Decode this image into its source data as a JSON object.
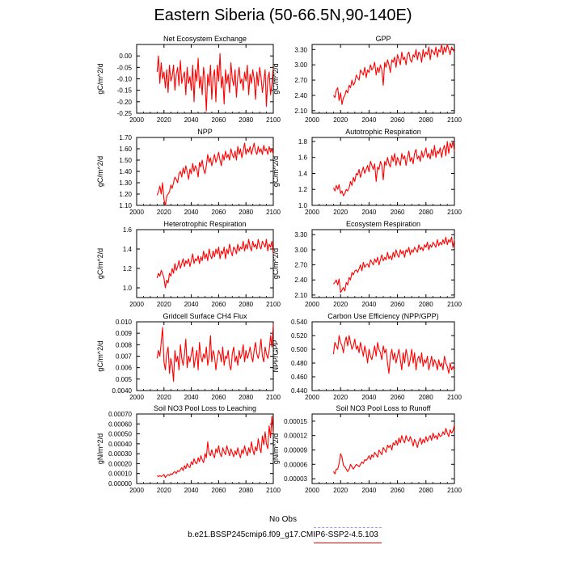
{
  "page": {
    "title": "Eastern Siberia (50-66.5N,90-140E)",
    "colors": {
      "series": "#ff0000",
      "obs": "#9999ff",
      "axis": "#000000",
      "background": "#ffffff"
    }
  },
  "legend": {
    "obs_label": "No Obs",
    "model_label": "b.e21.BSSP245cmip6.f09_g17.CMIP6-SSP2-4.5.103"
  },
  "chart_data": [
    {
      "type": "line",
      "title": "Net Ecosystem Exchange",
      "ylabel": "gC/m^2/d",
      "xlim": [
        2000,
        2100
      ],
      "ylim": [
        -0.25,
        0.05
      ],
      "xticks": [
        "2000",
        "2020",
        "2040",
        "2060",
        "2080",
        "2100"
      ],
      "yticks": [
        "0.00",
        "-0.05",
        "-0.10",
        "-0.15",
        "-0.20",
        "-0.25"
      ],
      "ytick_values": [
        0,
        -0.05,
        -0.1,
        -0.15,
        -0.2,
        -0.25
      ],
      "x_start": 2015,
      "values": [
        -0.07,
        0.0,
        -0.12,
        -0.03,
        -0.1,
        -0.07,
        -0.14,
        -0.06,
        -0.16,
        -0.04,
        -0.11,
        -0.09,
        -0.04,
        -0.15,
        -0.08,
        -0.05,
        -0.13,
        -0.02,
        -0.12,
        -0.09,
        -0.07,
        -0.17,
        -0.05,
        -0.12,
        -0.09,
        -0.15,
        -0.04,
        -0.2,
        -0.06,
        -0.11,
        -0.01,
        -0.14,
        -0.09,
        -0.17,
        -0.05,
        -0.1,
        -0.24,
        -0.08,
        -0.13,
        -0.04,
        -0.19,
        -0.09,
        -0.06,
        -0.2,
        -0.04,
        -0.11,
        0.01,
        -0.14,
        -0.09,
        -0.21,
        -0.06,
        -0.12,
        -0.08,
        -0.16,
        -0.03,
        -0.1,
        -0.13,
        -0.06,
        -0.18,
        -0.09,
        -0.05,
        -0.12,
        -0.1,
        -0.15,
        -0.07,
        -0.11,
        -0.04,
        -0.17,
        -0.08,
        -0.12,
        -0.06,
        -0.1,
        -0.19,
        -0.07,
        -0.13,
        -0.05,
        -0.09,
        -0.16,
        -0.11,
        -0.06,
        -0.22,
        -0.1,
        -0.07,
        -0.17,
        -0.12,
        -0.05
      ]
    },
    {
      "type": "line",
      "title": "GPP",
      "ylabel": "gC/m^2/d",
      "xlim": [
        2000,
        2100
      ],
      "ylim": [
        2.05,
        3.4
      ],
      "xticks": [
        "2000",
        "2020",
        "2040",
        "2060",
        "2080",
        "2100"
      ],
      "yticks": [
        "3.30",
        "3.00",
        "2.70",
        "2.40",
        "2.10"
      ],
      "ytick_values": [
        3.3,
        3.0,
        2.7,
        2.4,
        2.1
      ],
      "x_start": 2015,
      "values": [
        2.4,
        2.36,
        2.5,
        2.55,
        2.3,
        2.45,
        2.22,
        2.35,
        2.4,
        2.5,
        2.45,
        2.6,
        2.55,
        2.7,
        2.6,
        2.65,
        2.8,
        2.75,
        2.7,
        2.9,
        2.85,
        2.8,
        2.95,
        2.75,
        2.9,
        2.85,
        3.0,
        2.9,
        2.95,
        3.05,
        2.8,
        2.95,
        2.85,
        3.0,
        2.9,
        2.6,
        3.05,
        2.95,
        3.1,
        3.0,
        2.85,
        3.1,
        3.05,
        3.15,
        2.95,
        3.2,
        3.1,
        3.0,
        3.25,
        3.1,
        3.15,
        3.0,
        3.2,
        3.25,
        3.1,
        3.05,
        3.2,
        3.15,
        3.3,
        3.1,
        3.25,
        3.2,
        3.05,
        3.3,
        3.15,
        3.25,
        3.2,
        3.35,
        3.1,
        3.3,
        3.25,
        3.2,
        3.35,
        3.15,
        3.3,
        3.25,
        3.4,
        3.2,
        3.35,
        3.25,
        3.4,
        3.3,
        3.2,
        3.35,
        3.3,
        3.25
      ]
    },
    {
      "type": "line",
      "title": "NPP",
      "ylabel": "gC/m^2/d",
      "xlim": [
        2000,
        2100
      ],
      "ylim": [
        1.1,
        1.7
      ],
      "xticks": [
        "2000",
        "2020",
        "2040",
        "2060",
        "2080",
        "2100"
      ],
      "yticks": [
        "1.70",
        "1.60",
        "1.50",
        "1.40",
        "1.30",
        "1.20",
        "1.10"
      ],
      "ytick_values": [
        1.7,
        1.6,
        1.5,
        1.4,
        1.3,
        1.2,
        1.1
      ],
      "x_start": 2015,
      "values": [
        1.19,
        1.22,
        1.27,
        1.2,
        1.3,
        1.15,
        1.1,
        1.18,
        1.2,
        1.22,
        1.28,
        1.25,
        1.3,
        1.35,
        1.33,
        1.3,
        1.38,
        1.4,
        1.35,
        1.43,
        1.38,
        1.45,
        1.4,
        1.33,
        1.42,
        1.38,
        1.47,
        1.4,
        1.45,
        1.42,
        1.35,
        1.48,
        1.44,
        1.5,
        1.42,
        1.38,
        1.45,
        1.55,
        1.48,
        1.52,
        1.45,
        1.5,
        1.55,
        1.48,
        1.52,
        1.57,
        1.5,
        1.45,
        1.55,
        1.5,
        1.58,
        1.52,
        1.55,
        1.5,
        1.6,
        1.55,
        1.52,
        1.58,
        1.5,
        1.62,
        1.55,
        1.6,
        1.52,
        1.58,
        1.65,
        1.55,
        1.6,
        1.57,
        1.62,
        1.55,
        1.6,
        1.65,
        1.58,
        1.55,
        1.62,
        1.57,
        1.6,
        1.55,
        1.63,
        1.58,
        1.6,
        1.55,
        1.62,
        1.57,
        1.6,
        1.55
      ]
    },
    {
      "type": "line",
      "title": "Autotrophic Respiration",
      "ylabel": "gC/m^2/d",
      "xlim": [
        2000,
        2100
      ],
      "ylim": [
        1.0,
        1.85
      ],
      "xticks": [
        "2000",
        "2020",
        "2040",
        "2060",
        "2080",
        "2100"
      ],
      "yticks": [
        "1.8",
        "1.6",
        "1.4",
        "1.2",
        "1.0"
      ],
      "ytick_values": [
        1.8,
        1.6,
        1.4,
        1.2,
        1.0
      ],
      "x_start": 2015,
      "values": [
        1.22,
        1.18,
        1.25,
        1.2,
        1.26,
        1.15,
        1.18,
        1.12,
        1.15,
        1.2,
        1.18,
        1.22,
        1.3,
        1.25,
        1.35,
        1.3,
        1.4,
        1.38,
        1.45,
        1.35,
        1.42,
        1.48,
        1.4,
        1.45,
        1.5,
        1.42,
        1.55,
        1.5,
        1.45,
        1.52,
        1.3,
        1.48,
        1.45,
        1.55,
        1.5,
        1.32,
        1.55,
        1.5,
        1.6,
        1.52,
        1.48,
        1.62,
        1.55,
        1.65,
        1.5,
        1.6,
        1.55,
        1.5,
        1.65,
        1.58,
        1.62,
        1.5,
        1.6,
        1.68,
        1.55,
        1.6,
        1.52,
        1.65,
        1.7,
        1.58,
        1.62,
        1.55,
        1.68,
        1.6,
        1.65,
        1.72,
        1.6,
        1.65,
        1.58,
        1.7,
        1.62,
        1.75,
        1.6,
        1.68,
        1.65,
        1.72,
        1.6,
        1.7,
        1.75,
        1.62,
        1.8,
        1.65,
        1.78,
        1.72,
        1.8,
        1.68
      ]
    },
    {
      "type": "line",
      "title": "Heterotrophic Respiration",
      "ylabel": "gC/m^2/d",
      "xlim": [
        2000,
        2100
      ],
      "ylim": [
        0.9,
        1.6
      ],
      "xticks": [
        "2000",
        "2020",
        "2040",
        "2060",
        "2080",
        "2100"
      ],
      "yticks": [
        "1.6",
        "1.4",
        "1.2",
        "1.0"
      ],
      "ytick_values": [
        1.6,
        1.4,
        1.2,
        1.0
      ],
      "x_start": 2015,
      "values": [
        1.1,
        1.15,
        1.12,
        1.18,
        1.15,
        1.1,
        1.0,
        1.08,
        1.05,
        1.15,
        1.12,
        1.2,
        1.15,
        1.25,
        1.18,
        1.22,
        1.28,
        1.2,
        1.25,
        1.3,
        1.22,
        1.28,
        1.25,
        1.3,
        1.22,
        1.28,
        1.35,
        1.25,
        1.3,
        1.28,
        1.33,
        1.25,
        1.32,
        1.28,
        1.38,
        1.3,
        1.35,
        1.28,
        1.4,
        1.33,
        1.3,
        1.38,
        1.32,
        1.4,
        1.35,
        1.42,
        1.3,
        1.38,
        1.35,
        1.42,
        1.3,
        1.4,
        1.35,
        1.45,
        1.38,
        1.33,
        1.42,
        1.4,
        1.35,
        1.45,
        1.38,
        1.42,
        1.4,
        1.48,
        1.38,
        1.45,
        1.4,
        1.5,
        1.42,
        1.38,
        1.48,
        1.42,
        1.45,
        1.4,
        1.5,
        1.43,
        1.4,
        1.48,
        1.45,
        1.42,
        1.5,
        1.38,
        1.45,
        1.42,
        1.48,
        1.35
      ]
    },
    {
      "type": "line",
      "title": "Ecosystem Respiration",
      "ylabel": "gC/m^2/d",
      "xlim": [
        2000,
        2100
      ],
      "ylim": [
        2.05,
        3.4
      ],
      "xticks": [
        "2000",
        "2020",
        "2040",
        "2060",
        "2080",
        "2100"
      ],
      "yticks": [
        "3.30",
        "3.00",
        "2.70",
        "2.40",
        "2.10"
      ],
      "ytick_values": [
        3.3,
        3.0,
        2.7,
        2.4,
        2.1
      ],
      "x_start": 2015,
      "values": [
        2.32,
        2.35,
        2.4,
        2.3,
        2.42,
        2.15,
        2.2,
        2.25,
        2.18,
        2.35,
        2.3,
        2.45,
        2.4,
        2.55,
        2.5,
        2.58,
        2.6,
        2.55,
        2.62,
        2.7,
        2.58,
        2.75,
        2.65,
        2.7,
        2.72,
        2.65,
        2.8,
        2.75,
        2.7,
        2.82,
        2.75,
        2.85,
        2.7,
        2.8,
        2.9,
        2.78,
        2.85,
        2.8,
        2.95,
        2.82,
        2.88,
        2.8,
        2.95,
        2.85,
        3.0,
        2.9,
        2.85,
        3.0,
        2.92,
        2.98,
        2.85,
        3.0,
        2.95,
        3.05,
        2.9,
        3.0,
        2.95,
        3.05,
        3.0,
        2.95,
        3.1,
        3.0,
        3.05,
        2.98,
        3.1,
        3.05,
        3.15,
        3.0,
        3.1,
        3.05,
        3.15,
        3.1,
        3.05,
        3.2,
        3.08,
        3.15,
        3.1,
        3.2,
        3.12,
        3.25,
        3.1,
        3.2,
        3.15,
        3.25,
        3.05,
        3.2
      ]
    },
    {
      "type": "line",
      "title": "Gridcell Surface CH4 Flux",
      "ylabel": "gC/m^2/d",
      "xlim": [
        2000,
        2100
      ],
      "ylim": [
        0.004,
        0.01
      ],
      "xticks": [
        "2000",
        "2020",
        "2040",
        "2060",
        "2080",
        "2100"
      ],
      "yticks": [
        "0.010",
        "0.009",
        "0.008",
        "0.007",
        "0.006",
        "0.005",
        "0.0040"
      ],
      "ytick_values": [
        0.01,
        0.009,
        0.008,
        0.007,
        0.006,
        0.005,
        0.004
      ],
      "x_start": 2015,
      "values": [
        0.0068,
        0.0075,
        0.007,
        0.0082,
        0.0095,
        0.0065,
        0.0058,
        0.0072,
        0.0078,
        0.0055,
        0.0068,
        0.0062,
        0.0048,
        0.0075,
        0.0065,
        0.007,
        0.0058,
        0.008,
        0.0068,
        0.0062,
        0.0072,
        0.0085,
        0.006,
        0.007,
        0.0065,
        0.0072,
        0.0078,
        0.006,
        0.0068,
        0.0075,
        0.0058,
        0.0082,
        0.007,
        0.0065,
        0.0072,
        0.0068,
        0.0078,
        0.0062,
        0.007,
        0.0088,
        0.0065,
        0.0075,
        0.007,
        0.0058,
        0.0068,
        0.0075,
        0.0072,
        0.0065,
        0.0078,
        0.0062,
        0.007,
        0.0068,
        0.0075,
        0.0062,
        0.0058,
        0.0072,
        0.0078,
        0.0065,
        0.007,
        0.0062,
        0.0075,
        0.0068,
        0.0072,
        0.008,
        0.0065,
        0.0075,
        0.0068,
        0.0072,
        0.0078,
        0.007,
        0.0065,
        0.0075,
        0.0082,
        0.0072,
        0.0068,
        0.0075,
        0.0085,
        0.007,
        0.0065,
        0.0078,
        0.0072,
        0.0068,
        0.0075,
        0.0088,
        0.0078,
        0.0098
      ]
    },
    {
      "type": "line",
      "title": "Carbon Use Efficiency (NPP/GPP)",
      "ylabel": "NPP/GPP",
      "xlim": [
        2000,
        2100
      ],
      "ylim": [
        0.44,
        0.54
      ],
      "xticks": [
        "2000",
        "2020",
        "2040",
        "2060",
        "2080",
        "2100"
      ],
      "yticks": [
        "0.540",
        "0.520",
        "0.500",
        "0.480",
        "0.460",
        "0.440"
      ],
      "ytick_values": [
        0.54,
        0.52,
        0.5,
        0.48,
        0.46,
        0.44
      ],
      "x_start": 2015,
      "values": [
        0.493,
        0.51,
        0.505,
        0.5,
        0.52,
        0.51,
        0.505,
        0.495,
        0.51,
        0.518,
        0.505,
        0.52,
        0.51,
        0.5,
        0.505,
        0.515,
        0.5,
        0.505,
        0.495,
        0.51,
        0.5,
        0.49,
        0.505,
        0.495,
        0.48,
        0.5,
        0.49,
        0.485,
        0.495,
        0.505,
        0.49,
        0.51,
        0.5,
        0.495,
        0.485,
        0.505,
        0.495,
        0.5,
        0.48,
        0.465,
        0.49,
        0.5,
        0.485,
        0.495,
        0.48,
        0.49,
        0.5,
        0.485,
        0.47,
        0.495,
        0.48,
        0.5,
        0.49,
        0.475,
        0.485,
        0.5,
        0.48,
        0.495,
        0.47,
        0.485,
        0.49,
        0.48,
        0.495,
        0.475,
        0.485,
        0.48,
        0.49,
        0.47,
        0.48,
        0.49,
        0.475,
        0.485,
        0.48,
        0.47,
        0.485,
        0.475,
        0.48,
        0.47,
        0.49,
        0.48,
        0.475,
        0.465,
        0.48,
        0.47,
        0.475,
        0.47
      ]
    },
    {
      "type": "line",
      "title": "Soil NO3 Pool Loss to Leaching",
      "ylabel": "gN/m^2/d",
      "xlim": [
        2000,
        2100
      ],
      "ylim": [
        0.0,
        0.0007
      ],
      "xticks": [
        "2000",
        "2020",
        "2040",
        "2060",
        "2080",
        "2100"
      ],
      "yticks": [
        "0.00070",
        "0.00060",
        "0.00050",
        "0.00040",
        "0.00030",
        "0.00020",
        "0.00010",
        "0.00000"
      ],
      "ytick_values": [
        0.0007,
        0.0006,
        0.0005,
        0.0004,
        0.0003,
        0.0002,
        0.0001,
        0.0
      ],
      "x_start": 2015,
      "values": [
        8e-05,
        7e-05,
        8e-05,
        7e-05,
        8e-05,
        9e-05,
        6e-05,
        8e-05,
        9e-05,
        8e-05,
        0.0001,
        9e-05,
        0.00011,
        0.00012,
        0.0001,
        0.00013,
        0.00012,
        0.00014,
        0.00016,
        0.00013,
        0.00018,
        0.00015,
        0.0002,
        0.00017,
        0.00016,
        0.00022,
        0.00019,
        0.00025,
        0.00021,
        0.0002,
        0.00026,
        0.00022,
        0.00028,
        0.00024,
        0.00021,
        0.0003,
        0.00026,
        0.00042,
        0.0003,
        0.00028,
        0.00034,
        0.00029,
        0.00026,
        0.00035,
        0.00031,
        0.00038,
        0.0003,
        0.00027,
        0.00036,
        0.00032,
        0.00029,
        0.00038,
        0.00033,
        0.00028,
        0.00035,
        0.00031,
        0.00027,
        0.00033,
        0.00029,
        0.00036,
        0.0003,
        0.00026,
        0.00034,
        0.0003,
        0.00038,
        0.00032,
        0.00028,
        0.00036,
        0.00031,
        0.00042,
        0.00034,
        0.00029,
        0.00037,
        0.00033,
        0.00045,
        0.00036,
        0.00031,
        0.00048,
        0.00039,
        0.00052,
        0.0004,
        0.00035,
        0.00058,
        0.00046,
        0.00068,
        0.0005
      ]
    },
    {
      "type": "line",
      "title": "Soil NO3 Pool Loss to Runoff",
      "ylabel": "gN/m^2/d",
      "xlim": [
        2000,
        2100
      ],
      "ylim": [
        2e-05,
        0.000165
      ],
      "xticks": [
        "2000",
        "2020",
        "2040",
        "2060",
        "2080",
        "2100"
      ],
      "yticks": [
        "0.00015",
        "0.00012",
        "0.00009",
        "0.00006",
        "0.00003"
      ],
      "ytick_values": [
        0.00015,
        0.00012,
        9e-05,
        6e-05,
        3e-05
      ],
      "x_start": 2015,
      "values": [
        4.5e-05,
        4e-05,
        5e-05,
        5e-05,
        6.2e-05,
        8.2e-05,
        7.5e-05,
        5.8e-05,
        5.5e-05,
        5e-05,
        4.5e-05,
        5e-05,
        6e-05,
        5.5e-05,
        5e-05,
        5.5e-05,
        6e-05,
        5.8e-05,
        5.5e-05,
        6e-05,
        6.5e-05,
        6.2e-05,
        7e-05,
        6.8e-05,
        7.2e-05,
        7.8e-05,
        7e-05,
        8e-05,
        7.5e-05,
        8.5e-05,
        8e-05,
        7.5e-05,
        9e-05,
        8.5e-05,
        8e-05,
        9.5e-05,
        9e-05,
        8.5e-05,
        0.0001,
        9.5e-05,
        0.0001,
        9e-05,
        0.000105,
        0.0001,
        0.00011,
        0.0001,
        0.000115,
        0.000105,
        0.00012,
        0.00011,
        0.000105,
        0.00012,
        0.000112,
        0.000108,
        0.000118,
        0.00011,
        9.8e-05,
        0.000112,
        0.000105,
        9.5e-05,
        0.000108,
        0.000115,
        0.000102,
        0.000112,
        0.000105,
        0.000118,
        0.000108,
        0.000115,
        0.00012,
        0.00011,
        0.000125,
        0.000115,
        0.00012,
        0.000112,
        0.000125,
        0.000118,
        0.00012,
        0.000128,
        0.000122,
        0.000135,
        0.000125,
        0.000118,
        0.000132,
        0.000125,
        0.00013,
        0.000142
      ]
    }
  ]
}
